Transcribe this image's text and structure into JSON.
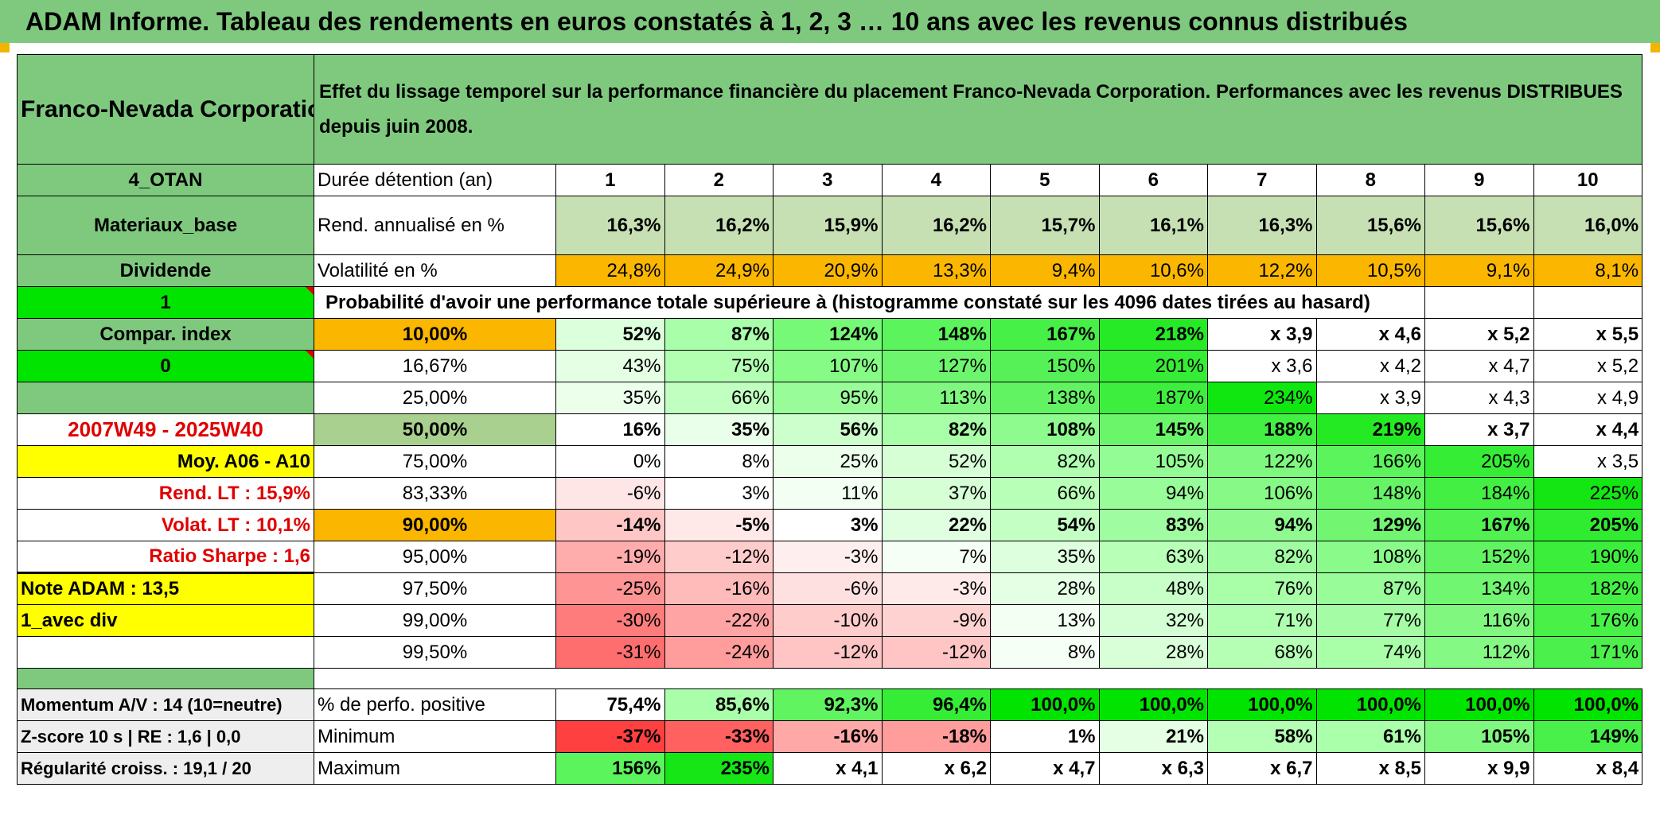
{
  "title": "ADAM Informe. Tableau des rendements en euros constatés à 1, 2, 3 … 10 ans avec les revenus connus distribués",
  "company": "Franco-Nevada Corporation",
  "description": "Effet du lissage temporel sur la performance financière du placement Franco-Nevada Corporation. Performances avec les revenus DISTRIBUES depuis juin 2008.",
  "header": {
    "side": "4_OTAN",
    "label": "Durée détention (an)",
    "years": [
      "1",
      "2",
      "3",
      "4",
      "5",
      "6",
      "7",
      "8",
      "9",
      "10"
    ]
  },
  "rendement": {
    "side": "Materiaux_base",
    "label": "Rend. annualisé en %",
    "values": [
      "16,3%",
      "16,2%",
      "15,9%",
      "16,2%",
      "15,7%",
      "16,1%",
      "16,3%",
      "15,6%",
      "15,6%",
      "16,0%"
    ]
  },
  "volatilite": {
    "side": "Dividende",
    "label": "Volatilité en %",
    "values": [
      "24,8%",
      "24,9%",
      "20,9%",
      "13,3%",
      "9,4%",
      "10,6%",
      "12,2%",
      "10,5%",
      "9,1%",
      "8,1%"
    ]
  },
  "probability_row": {
    "side": "1",
    "text": "Probabilité d'avoir une performance totale supérieure à (histogramme constaté sur les 4096 dates tirées au hasard)"
  },
  "rows": [
    {
      "side": "Compar. index",
      "pct": "10,00%",
      "values": [
        "52%",
        "87%",
        "124%",
        "148%",
        "167%",
        "218%",
        "x 3,9",
        "x 4,6",
        "x 5,2",
        "x 5,5"
      ]
    },
    {
      "side": "0",
      "pct": "16,67%",
      "values": [
        "43%",
        "75%",
        "107%",
        "127%",
        "150%",
        "201%",
        "x 3,6",
        "x 4,2",
        "x 4,7",
        "x 5,2"
      ]
    },
    {
      "side": "",
      "pct": "25,00%",
      "values": [
        "35%",
        "66%",
        "95%",
        "113%",
        "138%",
        "187%",
        "234%",
        "x 3,9",
        "x 4,3",
        "x 4,9"
      ]
    },
    {
      "side": "2007W49 - 2025W40",
      "pct": "50,00%",
      "values": [
        "16%",
        "35%",
        "56%",
        "82%",
        "108%",
        "145%",
        "188%",
        "219%",
        "x 3,7",
        "x 4,4"
      ]
    },
    {
      "side": "Moy. A06 - A10",
      "pct": "75,00%",
      "values": [
        "0%",
        "8%",
        "25%",
        "52%",
        "82%",
        "105%",
        "122%",
        "166%",
        "205%",
        "x 3,5"
      ]
    },
    {
      "side": "Rend. LT :    15,9%",
      "pct": "83,33%",
      "values": [
        "-6%",
        "3%",
        "11%",
        "37%",
        "66%",
        "94%",
        "106%",
        "148%",
        "184%",
        "225%"
      ]
    },
    {
      "side": "Volat. LT :    10,1%",
      "pct": "90,00%",
      "values": [
        "-14%",
        "-5%",
        "3%",
        "22%",
        "54%",
        "83%",
        "94%",
        "129%",
        "167%",
        "205%"
      ]
    },
    {
      "side": "Ratio Sharpe :    1,6",
      "pct": "95,00%",
      "values": [
        "-19%",
        "-12%",
        "-3%",
        "7%",
        "35%",
        "63%",
        "82%",
        "108%",
        "152%",
        "190%"
      ]
    },
    {
      "side": "Note ADAM : 13,5",
      "pct": "97,50%",
      "values": [
        "-25%",
        "-16%",
        "-6%",
        "-3%",
        "28%",
        "48%",
        "76%",
        "87%",
        "134%",
        "182%"
      ]
    },
    {
      "side": "1_avec div",
      "pct": "99,00%",
      "values": [
        "-30%",
        "-22%",
        "-10%",
        "-9%",
        "13%",
        "32%",
        "71%",
        "77%",
        "116%",
        "176%"
      ]
    },
    {
      "side": "",
      "pct": "99,50%",
      "values": [
        "-31%",
        "-24%",
        "-12%",
        "-12%",
        "8%",
        "28%",
        "68%",
        "74%",
        "112%",
        "171%"
      ]
    }
  ],
  "footer_rows": [
    {
      "side": "Momentum A/V : 14 (10=neutre)",
      "label": "% de perfo. positive",
      "values": [
        "75,4%",
        "85,6%",
        "92,3%",
        "96,4%",
        "100,0%",
        "100,0%",
        "100,0%",
        "100,0%",
        "100,0%",
        "100,0%"
      ]
    },
    {
      "side": "Z-score 10 s | RE : 1,6 | 0,0",
      "label": "Minimum",
      "values": [
        "-37%",
        "-33%",
        "-16%",
        "-18%",
        "1%",
        "21%",
        "58%",
        "61%",
        "105%",
        "149%"
      ]
    },
    {
      "side": "Régularité croiss. : 19,1 / 20",
      "label": "Maximum",
      "values": [
        "156%",
        "235%",
        "x 4,1",
        "x 6,2",
        "x 4,7",
        "x 6,3",
        "x 6,7",
        "x 8,5",
        "x 9,9",
        "x 8,4"
      ]
    }
  ],
  "colors": {
    "title_green": "#7fc97f",
    "bright_green": "#00e400",
    "orange": "#fbb700",
    "yellow": "#ffff00",
    "label_red": "#e00000"
  },
  "cell_colors": {
    "rendement": [
      "#c6e0b4",
      "#c6e0b4",
      "#c6e0b4",
      "#c6e0b4",
      "#c6e0b4",
      "#c6e0b4",
      "#c6e0b4",
      "#c6e0b4",
      "#c6e0b4",
      "#c6e0b4"
    ],
    "volatilite": [
      "#fbb700",
      "#fbb700",
      "#fbb700",
      "#fbb700",
      "#fbb700",
      "#fbb700",
      "#fbb700",
      "#fbb700",
      "#fbb700",
      "#fbb700"
    ],
    "rows": [
      [
        "#dcffdc",
        "#a9ffa9",
        "#76f976",
        "#5cf45c",
        "#46f046",
        "#26ea26",
        "#ffffff",
        "#ffffff",
        "#ffffff",
        "#ffffff"
      ],
      [
        "#e4ffe4",
        "#b2ffb2",
        "#86fb86",
        "#6df66d",
        "#56f156",
        "#36ed36",
        "#ffffff",
        "#ffffff",
        "#ffffff",
        "#ffffff"
      ],
      [
        "#ebffeb",
        "#c0ffc0",
        "#98fc98",
        "#80f880",
        "#62f362",
        "#3eee3e",
        "#10e610",
        "#ffffff",
        "#ffffff",
        "#ffffff"
      ],
      [
        "#ffffff",
        "#eaffea",
        "#ccffcc",
        "#a8ffa8",
        "#8efb8e",
        "#6af56a",
        "#42ef42",
        "#24ea24",
        "#ffffff",
        "#ffffff"
      ],
      [
        "#ffffff",
        "#ffffff",
        "#ebffeb",
        "#d6ffd6",
        "#b0ffb0",
        "#94fc94",
        "#7ef87e",
        "#5cf45c",
        "#36ed36",
        "#ffffff"
      ],
      [
        "#ffe6e6",
        "#ffffff",
        "#f2fff2",
        "#d6ffd6",
        "#b8ffb8",
        "#98fc98",
        "#86f986",
        "#66f466",
        "#42ef42",
        "#14e614"
      ],
      [
        "#ffc6c6",
        "#ffe8e8",
        "#ffffff",
        "#e0ffe0",
        "#c4ffc4",
        "#a0fca0",
        "#90fa90",
        "#72f672",
        "#52f152",
        "#30ec30"
      ],
      [
        "#ffacac",
        "#ffcccc",
        "#ffeeee",
        "#f6fff6",
        "#ddffdd",
        "#b8ffb8",
        "#a0fca0",
        "#8afa8a",
        "#62f362",
        "#3cee3c"
      ],
      [
        "#ff9494",
        "#ffbaba",
        "#ffe0e0",
        "#ffeaea",
        "#e4ffe4",
        "#c8ffc8",
        "#a8ffa8",
        "#98fc98",
        "#70f670",
        "#42ef42"
      ],
      [
        "#ff7c7c",
        "#ffa4a4",
        "#ffcccc",
        "#ffd2d2",
        "#f2fff2",
        "#d4ffd4",
        "#b0ffb0",
        "#a4fda4",
        "#80f880",
        "#48f048"
      ],
      [
        "#ff6e6e",
        "#ff9c9c",
        "#ffc4c4",
        "#ffc4c4",
        "#f6fff6",
        "#d8ffd8",
        "#b4ffb4",
        "#a8ffa8",
        "#84f984",
        "#4cf04c"
      ]
    ],
    "footer": [
      [
        "#ffffff",
        "#a9ffa9",
        "#60f460",
        "#36ed36",
        "#00e400",
        "#00e400",
        "#00e400",
        "#00e400",
        "#00e400",
        "#00e400"
      ],
      [
        "#ff4040",
        "#ff6060",
        "#ffa8a8",
        "#ff9c9c",
        "#ffffff",
        "#e4ffe4",
        "#b4ffb4",
        "#aaffaa",
        "#80f880",
        "#4af04a"
      ],
      [
        "#5cf45c",
        "#16e616",
        "#ffffff",
        "#ffffff",
        "#ffffff",
        "#ffffff",
        "#ffffff",
        "#ffffff",
        "#ffffff",
        "#ffffff"
      ]
    ]
  }
}
